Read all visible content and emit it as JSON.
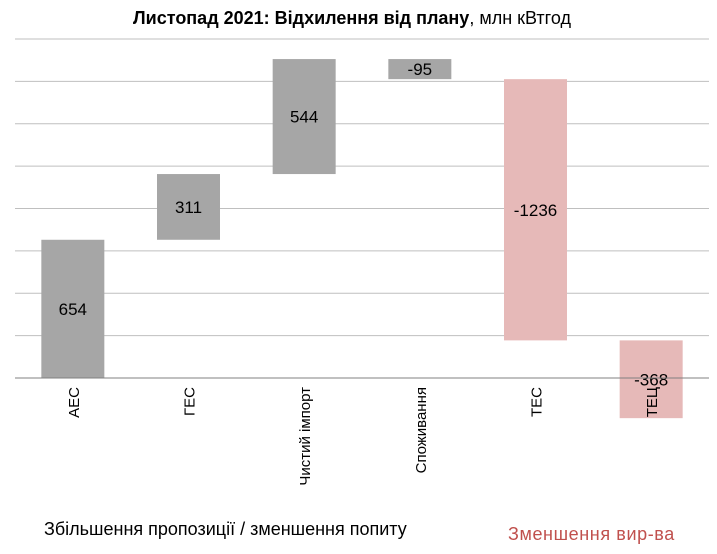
{
  "chart_data": {
    "type": "bar",
    "subtype": "waterfall",
    "title_bold": "Листопад 2021: Відхилення від плану",
    "title_rest": ", млн кВтгод",
    "categories": [
      "АЕС",
      "ГЕС",
      "Чистий імпорт",
      "Споживання",
      "ТЕС",
      "ТЕЦ"
    ],
    "values": [
      654,
      311,
      544,
      -95,
      -1236,
      -368
    ],
    "value_labels": [
      "654",
      "311",
      "544",
      "-95",
      "-1236",
      "-368"
    ],
    "kinds": [
      "increase",
      "increase",
      "increase",
      "increase",
      "decrease",
      "decrease"
    ],
    "colors": {
      "increase": "#a6a6a6",
      "decrease": "#e6b9b8",
      "grid": "#bfbfbf",
      "axis": "#808080",
      "caption_decrease": "#c0504d"
    },
    "ylim": [
      0,
      1604
    ],
    "grid_step": 200.5,
    "grid": true,
    "xlabel": "",
    "ylabel": "",
    "caption_increase": "Збільшення пропозиції / зменшення попиту",
    "caption_decrease": "Зменшення  вир-ва"
  }
}
